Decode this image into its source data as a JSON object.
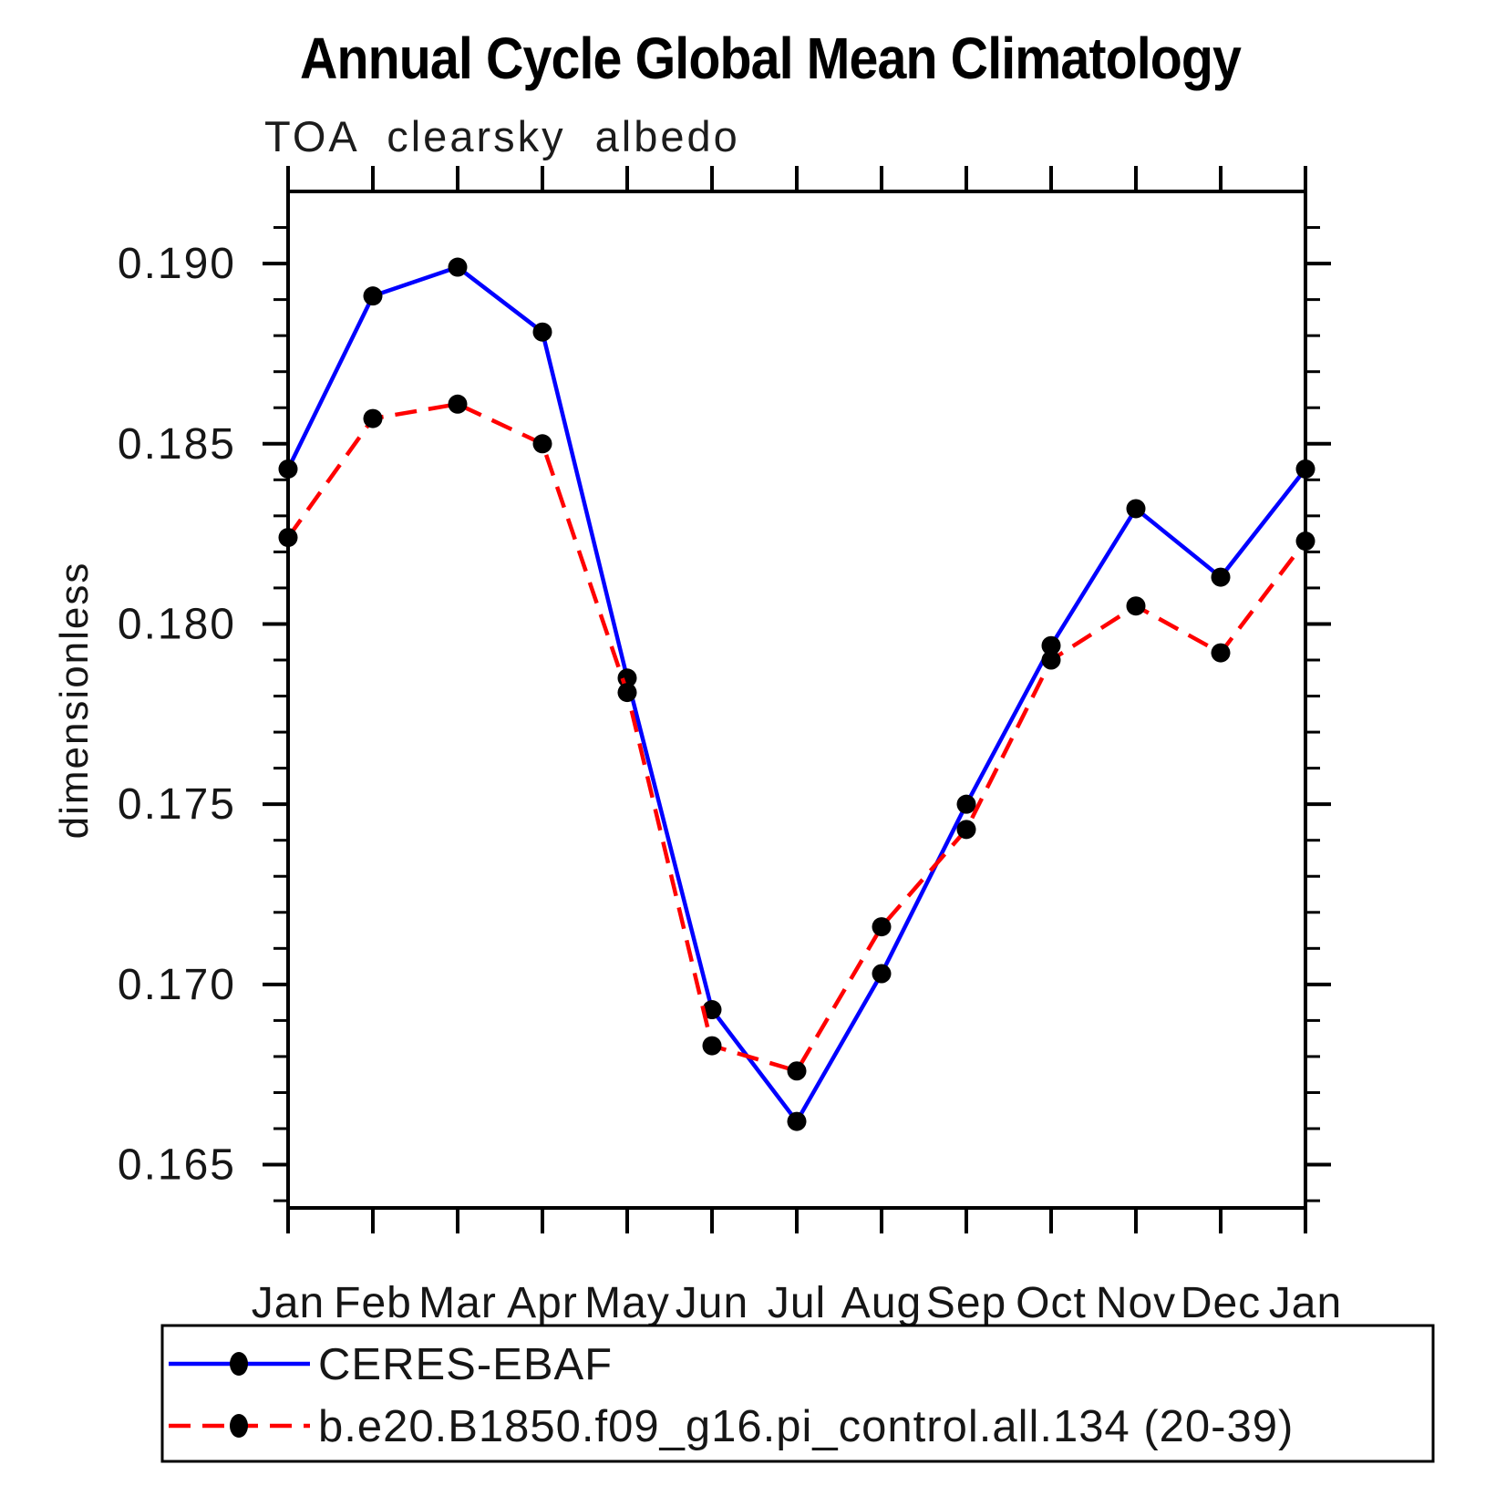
{
  "header": {
    "title": "Annual Cycle Global Mean Climatology",
    "subtitle": "TOA clearsky albedo"
  },
  "axes": {
    "ylabel": "dimensionless",
    "y_tick_labels": [
      "0.165",
      "0.170",
      "0.175",
      "0.180",
      "0.185",
      "0.190"
    ]
  },
  "chart_data": {
    "type": "line",
    "title": "Annual Cycle Global Mean Climatology",
    "subtitle": "TOA clearsky albedo",
    "xlabel": "",
    "ylabel": "dimensionless",
    "x_categories": [
      "Jan",
      "Feb",
      "Mar",
      "Apr",
      "May",
      "Jun",
      "Jul",
      "Aug",
      "Sep",
      "Oct",
      "Nov",
      "Dec",
      "Jan"
    ],
    "ylim": [
      0.1638,
      0.192
    ],
    "y_major_ticks": [
      0.165,
      0.17,
      0.175,
      0.18,
      0.185,
      0.19
    ],
    "y_minor_step": 0.001,
    "grid": false,
    "legend_position": "bottom-left-box",
    "marker_color": "#000000",
    "series": [
      {
        "name": "CERES-EBAF",
        "color": "#0000ff",
        "style": "solid",
        "marker": "filled-circle",
        "values": [
          0.1843,
          0.1891,
          0.1899,
          0.1881,
          0.1785,
          0.1693,
          0.1662,
          0.1703,
          0.175,
          0.1794,
          0.1832,
          0.1813,
          0.1843
        ]
      },
      {
        "name": "b.e20.B1850.f09_g16.pi_control.all.134 (20-39)",
        "color": "#ff0000",
        "style": "dashed",
        "marker": "filled-circle",
        "values": [
          0.1824,
          0.1857,
          0.1861,
          0.185,
          0.1781,
          0.1683,
          0.1676,
          0.1716,
          0.1743,
          0.179,
          0.1805,
          0.1792,
          0.1823
        ]
      }
    ]
  }
}
